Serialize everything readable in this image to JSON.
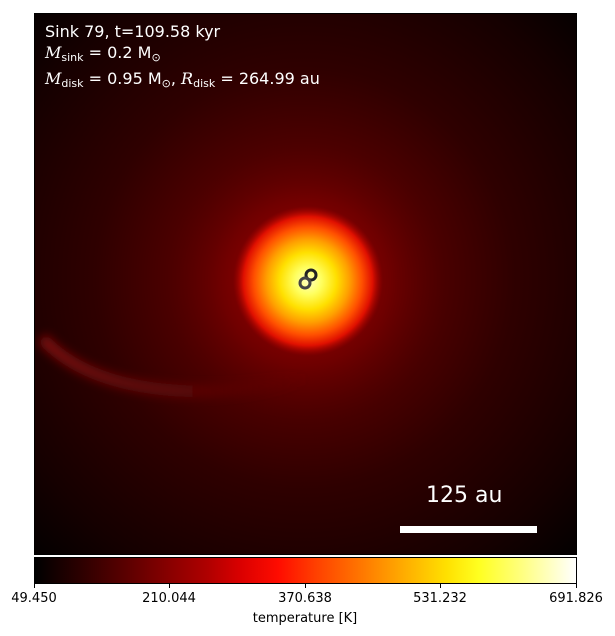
{
  "header": {
    "sink_line": "Sink 79, t=109.58 kyr",
    "msink_symbol": "M",
    "msink_sub": "sink",
    "msink_value": "= 0.2 M",
    "msink_odot": "⊙",
    "mdisk_symbol": "M",
    "mdisk_sub": "disk",
    "mdisk_value": "= 0.95 M",
    "mdisk_odot": "⊙",
    "separator": ",",
    "rdisk_symbol": "R",
    "rdisk_sub": "disk",
    "rdisk_value": "= 264.99 au"
  },
  "scale": {
    "label": "125 au"
  },
  "colorbar": {
    "ticks": [
      "49.450",
      "210.044",
      "370.638",
      "531.232",
      "691.826"
    ],
    "label": "temperature [K]",
    "colormap": "hot"
  },
  "colors": {
    "background": "#000000",
    "core": "#ffff80",
    "mid": "#ff6a00",
    "outer": "#7a0000",
    "text": "#ffffff"
  }
}
